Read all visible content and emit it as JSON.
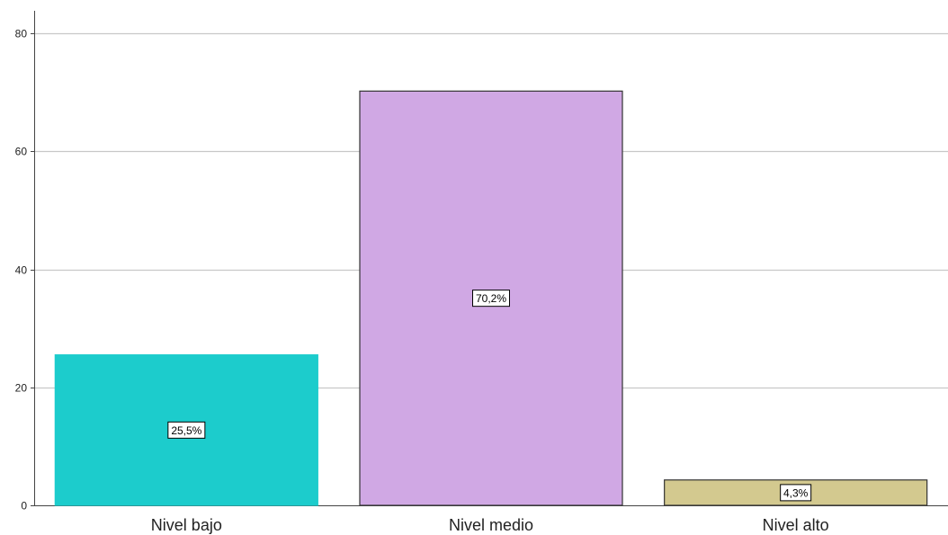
{
  "chart_data": {
    "type": "bar",
    "categories": [
      "Nivel bajo",
      "Nivel medio",
      "Nivel alto"
    ],
    "values": [
      25.5,
      70.2,
      4.3
    ],
    "data_labels": [
      "25,5%",
      "70,2%",
      "4,3%"
    ],
    "colors": [
      "#1ccccc",
      "#d0a8e4",
      "#d3c98f"
    ],
    "bar_borders": [
      "#1ccccc",
      "#333333",
      "#333333"
    ],
    "ylim": [
      0,
      80
    ],
    "yticks": [
      0,
      20,
      40,
      60,
      80
    ],
    "ytick_labels": [
      "0",
      "20",
      "40",
      "60",
      "80"
    ],
    "title": "",
    "xlabel": "",
    "ylabel": "",
    "grid": "horizontal"
  }
}
